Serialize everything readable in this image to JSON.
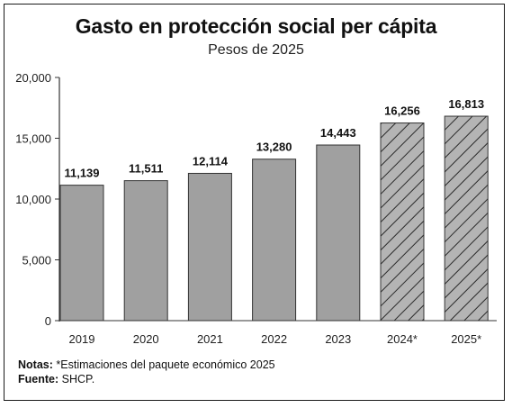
{
  "chart_data": {
    "type": "bar",
    "title": "Gasto en protección social per cápita",
    "subtitle": "Pesos de 2025",
    "categories": [
      "2019",
      "2020",
      "2021",
      "2022",
      "2023",
      "2024*",
      "2025*"
    ],
    "values": [
      11139,
      11511,
      12114,
      13280,
      14443,
      16256,
      16813
    ],
    "value_labels": [
      "11,139",
      "11,511",
      "12,114",
      "13,280",
      "14,443",
      "16,256",
      "16,813"
    ],
    "estimated": [
      false,
      false,
      false,
      false,
      false,
      true,
      true
    ],
    "ylim": [
      0,
      20000
    ],
    "yticks": [
      0,
      5000,
      10000,
      15000,
      20000
    ],
    "ytick_labels": [
      "0",
      "5,000",
      "10,000",
      "15,000",
      "20,000"
    ],
    "xlabel": "",
    "ylabel": "",
    "grid": false,
    "colors": {
      "bar_fill": "#a0a0a0",
      "hatch_fill": "#b4b4b4",
      "bar_stroke": "#333333",
      "axis": "#333333"
    }
  },
  "notes": {
    "notas_label": "Notas:",
    "notas_text": "*Estimaciones del paquete económico 2025",
    "fuente_label": "Fuente:",
    "fuente_text": "SHCP."
  }
}
